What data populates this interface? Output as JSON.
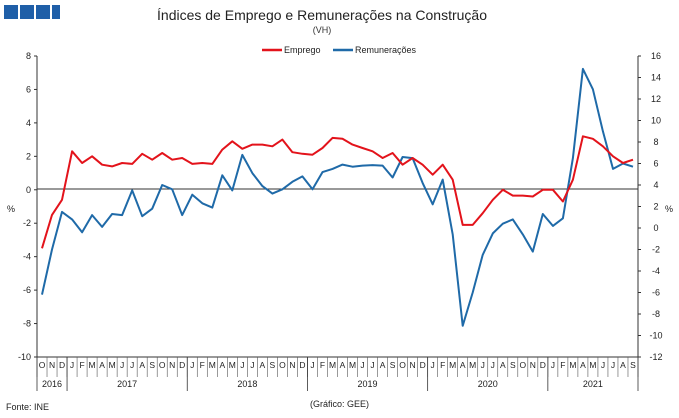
{
  "chart_data": {
    "type": "line",
    "title": "Índices de Emprego  e Remunerações  na Construção",
    "subtitle": "(VH)",
    "left_axis": {
      "label": "%",
      "ylim": [
        -10,
        8
      ],
      "ticks": [
        8,
        6,
        4,
        2,
        0,
        -2,
        -4,
        -6,
        -8,
        -10
      ]
    },
    "right_axis": {
      "label": "%",
      "ylim": [
        -12,
        16
      ],
      "ticks": [
        16,
        14,
        12,
        10,
        8,
        6,
        4,
        2,
        0,
        -2,
        -4,
        -6,
        -8,
        -10,
        -12
      ]
    },
    "legend_position": "top-center",
    "month_labels": [
      "O",
      "N",
      "D",
      "J",
      "F",
      "M",
      "A",
      "M",
      "J",
      "J",
      "A",
      "S",
      "O",
      "N",
      "D",
      "J",
      "F",
      "M",
      "A",
      "M",
      "J",
      "J",
      "A",
      "S",
      "O",
      "N",
      "D",
      "J",
      "F",
      "M",
      "A",
      "M",
      "J",
      "J",
      "A",
      "S",
      "O",
      "N",
      "D",
      "J",
      "F",
      "M",
      "A",
      "M",
      "J",
      "J",
      "A",
      "S",
      "O",
      "N",
      "D",
      "J",
      "F",
      "M",
      "A",
      "M",
      "J",
      "J",
      "A",
      "S"
    ],
    "year_labels": [
      {
        "year": "2016",
        "start": 0,
        "end": 2
      },
      {
        "year": "2017",
        "start": 3,
        "end": 14
      },
      {
        "year": "2018",
        "start": 15,
        "end": 26
      },
      {
        "year": "2019",
        "start": 27,
        "end": 38
      },
      {
        "year": "2020",
        "start": 39,
        "end": 50
      },
      {
        "year": "2021",
        "start": 51,
        "end": 59
      }
    ],
    "series": [
      {
        "name": "Emprego",
        "color": "#e3131b",
        "axis": "left",
        "values": [
          -3.5,
          -1.5,
          -0.6,
          2.3,
          1.6,
          2.0,
          1.5,
          1.4,
          1.6,
          1.55,
          2.15,
          1.8,
          2.2,
          1.8,
          1.9,
          1.55,
          1.6,
          1.55,
          2.4,
          2.9,
          2.45,
          2.7,
          2.7,
          2.6,
          3.0,
          2.25,
          2.15,
          2.1,
          2.5,
          3.1,
          3.05,
          2.7,
          2.5,
          2.3,
          1.9,
          2.2,
          1.5,
          1.9,
          1.5,
          0.9,
          1.5,
          0.6,
          -2.1,
          -2.1,
          -1.4,
          -0.6,
          0.0,
          -0.35,
          -0.35,
          -0.4,
          0.0,
          0.0,
          -0.7,
          0.6,
          3.2,
          3.05,
          2.6,
          2.0,
          1.6,
          1.8
        ]
      },
      {
        "name": "Remunerações",
        "color": "#1f6aa8",
        "axis": "right",
        "values": [
          -6.2,
          -2.0,
          1.5,
          0.8,
          -0.4,
          1.2,
          0.1,
          1.3,
          1.2,
          3.5,
          1.1,
          1.8,
          4.0,
          3.6,
          1.2,
          3.1,
          2.3,
          1.9,
          4.9,
          3.5,
          6.8,
          5.1,
          3.9,
          3.2,
          3.6,
          4.3,
          4.8,
          3.6,
          5.2,
          5.5,
          5.9,
          5.7,
          5.8,
          5.85,
          5.8,
          4.7,
          6.6,
          6.5,
          4.2,
          2.2,
          4.5,
          -0.6,
          -9.1,
          -6.0,
          -2.5,
          -0.5,
          0.4,
          0.8,
          -0.6,
          -2.2,
          1.3,
          0.2,
          0.9,
          6.5,
          14.8,
          12.9,
          9.0,
          5.5,
          6.0,
          5.7
        ]
      }
    ]
  },
  "source": "Fonte: INE",
  "credit": "(Gráfico: GEE)"
}
